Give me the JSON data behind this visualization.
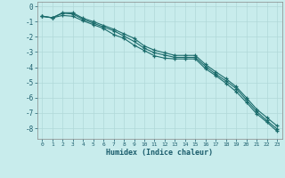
{
  "xlabel": "Humidex (Indice chaleur)",
  "bg_color": "#c8ecec",
  "grid_color": "#b0d8d8",
  "line_color": "#1a6b6b",
  "xlim": [
    -0.5,
    23.5
  ],
  "ylim": [
    -8.7,
    0.3
  ],
  "xticks": [
    0,
    1,
    2,
    3,
    4,
    5,
    6,
    7,
    8,
    9,
    10,
    11,
    12,
    13,
    14,
    15,
    16,
    17,
    18,
    19,
    20,
    21,
    22,
    23
  ],
  "yticks": [
    0,
    -1,
    -2,
    -3,
    -4,
    -5,
    -6,
    -7,
    -8
  ],
  "line1_x": [
    0,
    1,
    2,
    3,
    4,
    5,
    6,
    7,
    8,
    9,
    10,
    11,
    12,
    13,
    14,
    15,
    16,
    17,
    18,
    19,
    20,
    21,
    22,
    23
  ],
  "line1_y": [
    -0.65,
    -0.75,
    -0.45,
    -0.5,
    -0.85,
    -1.1,
    -1.35,
    -1.6,
    -1.95,
    -2.3,
    -2.75,
    -3.05,
    -3.2,
    -3.35,
    -3.35,
    -3.35,
    -3.95,
    -4.45,
    -4.9,
    -5.4,
    -6.15,
    -6.9,
    -7.5,
    -8.05
  ],
  "line2_x": [
    0,
    1,
    2,
    3,
    4,
    5,
    6,
    7,
    8,
    9,
    10,
    11,
    12,
    13,
    14,
    15,
    16,
    17,
    18,
    19,
    20,
    21,
    22,
    23
  ],
  "line2_y": [
    -0.65,
    -0.75,
    -0.6,
    -0.65,
    -0.95,
    -1.2,
    -1.45,
    -1.85,
    -2.1,
    -2.55,
    -2.9,
    -3.25,
    -3.4,
    -3.45,
    -3.45,
    -3.45,
    -4.1,
    -4.55,
    -5.05,
    -5.6,
    -6.3,
    -7.05,
    -7.6,
    -8.2
  ],
  "line3_x": [
    0,
    1,
    2,
    3,
    4,
    5,
    6,
    7,
    8,
    9,
    10,
    11,
    12,
    13,
    14,
    15,
    16,
    17,
    18,
    19,
    20,
    21,
    22,
    23
  ],
  "line3_y": [
    -0.65,
    -0.75,
    -0.42,
    -0.42,
    -0.78,
    -1.0,
    -1.25,
    -1.5,
    -1.8,
    -2.1,
    -2.6,
    -2.88,
    -3.05,
    -3.22,
    -3.22,
    -3.22,
    -3.82,
    -4.3,
    -4.75,
    -5.28,
    -6.0,
    -6.75,
    -7.3,
    -7.85
  ]
}
